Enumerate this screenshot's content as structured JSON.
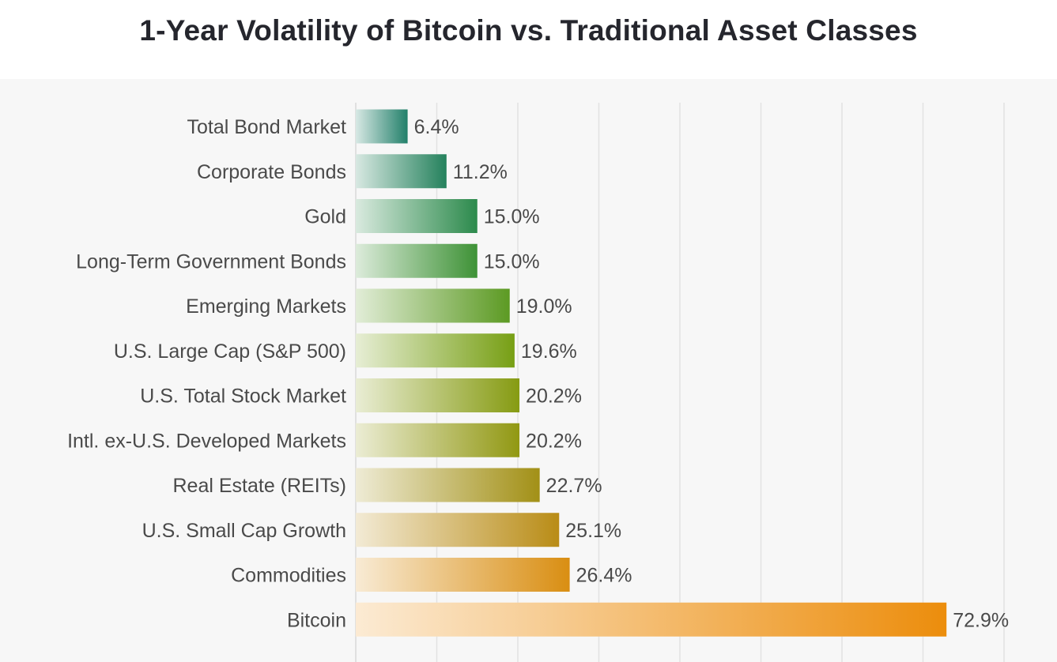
{
  "chart_data": {
    "type": "bar",
    "orientation": "horizontal",
    "title": "1-Year Volatility of Bitcoin vs. Traditional Asset Classes",
    "xlabel": "",
    "ylabel": "",
    "xlim": [
      0,
      80
    ],
    "grid": "vertical",
    "categories": [
      "Total Bond Market",
      "Corporate Bonds",
      "Gold",
      "Long-Term Government Bonds",
      "Emerging Markets",
      "U.S. Large Cap (S&P 500)",
      "U.S. Total Stock Market",
      "Intl. ex-U.S. Developed Markets",
      "Real Estate (REITs)",
      "U.S. Small Cap Growth",
      "Commodities",
      "Bitcoin"
    ],
    "values": [
      6.4,
      11.2,
      15.0,
      15.0,
      19.0,
      19.6,
      20.2,
      20.2,
      22.7,
      25.1,
      26.4,
      72.9
    ],
    "value_labels": [
      "6.4%",
      "11.2%",
      "15.0%",
      "15.0%",
      "19.0%",
      "19.6%",
      "20.2%",
      "20.2%",
      "22.7%",
      "25.1%",
      "26.4%",
      "72.9%"
    ],
    "bar_colors": [
      "#22806a",
      "#24815c",
      "#2c8a4c",
      "#3e9236",
      "#5c9a23",
      "#779f14",
      "#869b12",
      "#919812",
      "#a29016",
      "#b98c16",
      "#d98e12",
      "#ec8d0c"
    ],
    "bar_fade_color": "#ffffff"
  }
}
